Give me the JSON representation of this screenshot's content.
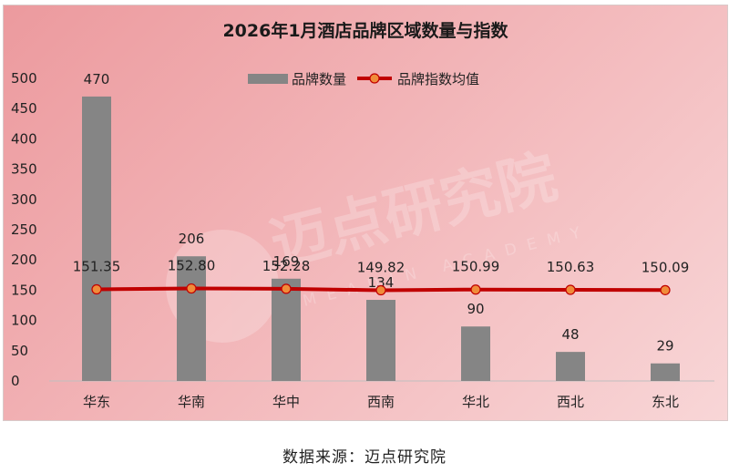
{
  "chart_data": {
    "type": "bar",
    "title": "2026年1月酒店品牌区域数量与指数",
    "categories": [
      "华东",
      "华南",
      "华中",
      "西南",
      "华北",
      "西北",
      "东北"
    ],
    "series": [
      {
        "name": "品牌数量",
        "type": "bar",
        "color": "#858585",
        "values": [
          470,
          206,
          169,
          134,
          90,
          48,
          29
        ]
      },
      {
        "name": "品牌指数均值",
        "type": "line",
        "color": "#c00000",
        "marker_color": "#f08c3a",
        "values": [
          151.35,
          152.8,
          152.28,
          149.82,
          150.99,
          150.63,
          150.09
        ],
        "labels": [
          "151.35",
          "152.80",
          "152.28",
          "149.82",
          "150.99",
          "150.63",
          "150.09"
        ]
      }
    ],
    "ylim": [
      0,
      500
    ],
    "yticks": [
      0,
      50,
      100,
      150,
      200,
      250,
      300,
      350,
      400,
      450,
      500
    ],
    "legend": "top-center",
    "grid": false
  },
  "watermark": {
    "text": "迈点研究院",
    "subtext": "MEADIN ACADEMY"
  },
  "source": "数据来源：迈点研究院"
}
